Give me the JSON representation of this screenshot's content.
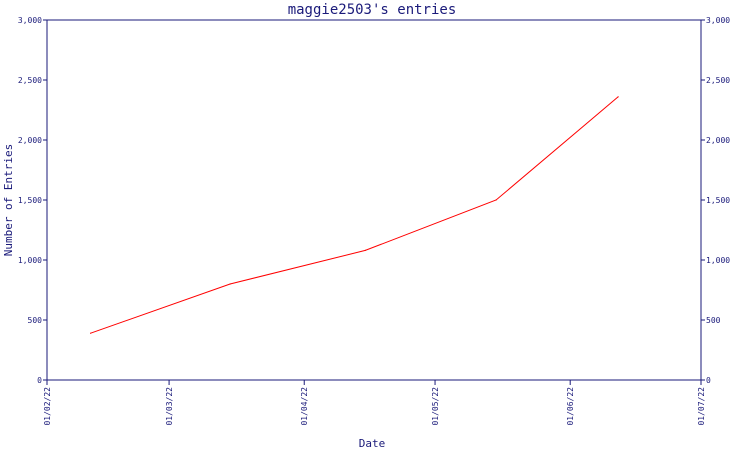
{
  "chart_data": {
    "type": "line",
    "title": "maggie2503's entries",
    "xlabel": "Date",
    "ylabel": "Number of Entries",
    "x_ticks": [
      "01/02/22",
      "01/03/22",
      "01/04/22",
      "01/05/22",
      "01/06/22",
      "01/07/22"
    ],
    "y_ticks": [
      "0",
      "500",
      "1,000",
      "1,500",
      "2,000",
      "2,500",
      "3,000"
    ],
    "ylim": [
      0,
      3000
    ],
    "xlim": [
      "2022-02-01",
      "2022-07-01"
    ],
    "series": [
      {
        "color": "#ff0000",
        "points": [
          {
            "x": "2022-02-11",
            "y": 390
          },
          {
            "x": "2022-03-15",
            "y": 800
          },
          {
            "x": "2022-04-15",
            "y": 1080
          },
          {
            "x": "2022-05-15",
            "y": 1500
          },
          {
            "x": "2022-06-12",
            "y": 2360
          }
        ]
      }
    ],
    "right_axis_mirror": true,
    "grid": false,
    "colors": {
      "axis": "#1a1a7a",
      "line": "#ff0000",
      "background": "#ffffff"
    }
  }
}
